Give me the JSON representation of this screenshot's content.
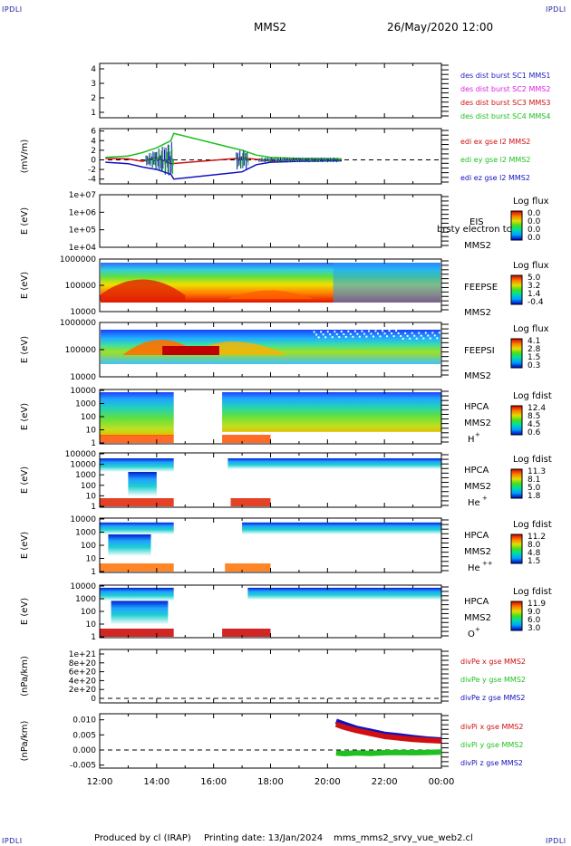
{
  "header": {
    "corner_tl": "IPDLI",
    "corner_tr": "IPDLI",
    "corner_bl": "IPDLI",
    "corner_br": "IPDLI",
    "spacecraft": "MMS2",
    "date_time": "26/May/2020 12:00"
  },
  "footer": {
    "produced_by": "Produced by cl (IRAP)",
    "printing_date": "Printing date: 13/Jan/2024",
    "file_name": "mms_mms2_srvy_vue_web2.cl"
  },
  "colors": {
    "sc1": "#2020c0",
    "sc2": "#e020e0",
    "sc3": "#d01010",
    "sc4": "#20c020",
    "x_comp": "#d01010",
    "y_comp": "#20c020",
    "z_comp": "#1010c0"
  },
  "chart_data": [
    {
      "type": "line",
      "panel": "spacecraft-legend",
      "ylim": [
        0.5,
        4.5
      ],
      "yticks": [
        "1",
        "2",
        "3",
        "4"
      ],
      "legend": [
        {
          "name": "des dist burst SC1 MMS1",
          "color": "#2020c0"
        },
        {
          "name": "des dist burst SC2 MMS2",
          "color": "#e020e0"
        },
        {
          "name": "des dist burst SC3 MMS3",
          "color": "#d01010"
        },
        {
          "name": "des dist burst SC4 MMS4",
          "color": "#20c020"
        }
      ]
    },
    {
      "type": "line",
      "panel": "edi-electric-field",
      "ylabel": "(mV/m)",
      "ylim": [
        -5,
        6.5
      ],
      "yticks": [
        "-4",
        "-2",
        "0",
        "2",
        "4",
        "6"
      ],
      "reference_line": 0,
      "series": [
        {
          "name": "edi ex gse l2 MMS2",
          "color": "#d01010",
          "x": [
            12.2,
            13.0,
            13.5,
            14.0,
            14.5,
            17.0,
            17.5,
            18.0,
            19.0,
            20.5
          ],
          "values": [
            0.3,
            0.2,
            -0.3,
            0.5,
            -0.8,
            0.4,
            0.1,
            -0.2,
            0.1,
            0.0
          ]
        },
        {
          "name": "edi ey gse l2 MMS2",
          "color": "#20c020",
          "x": [
            12.2,
            13.0,
            13.5,
            14.0,
            14.5,
            14.6,
            17.0,
            17.5,
            18.0,
            19.0,
            20.5
          ],
          "values": [
            0.5,
            0.8,
            1.5,
            2.5,
            4.0,
            5.5,
            2.0,
            1.0,
            0.5,
            0.3,
            0.2
          ]
        },
        {
          "name": "edi ez gse l2 MMS2",
          "color": "#1010c0",
          "x": [
            12.2,
            13.0,
            13.5,
            14.0,
            14.5,
            14.6,
            17.0,
            17.5,
            18.0,
            19.0,
            20.5
          ],
          "values": [
            -0.5,
            -0.8,
            -1.5,
            -2.0,
            -3.0,
            -4.0,
            -2.5,
            -1.0,
            -0.5,
            -0.3,
            -0.2
          ]
        }
      ]
    },
    {
      "type": "heatmap",
      "panel": "eis",
      "ylabel": "E (eV)",
      "yscale": "log",
      "yticks": [
        "1e+04",
        "1e+05",
        "1e+06",
        "1e+07"
      ],
      "instrument": "EIS",
      "sublabel": "MMS2",
      "legend_overlap_text": "brsty electron tc",
      "colorbar_title": "Log flux",
      "colorbar_ticks": [
        "0.0",
        "0.0",
        "0.0",
        "0.0"
      ]
    },
    {
      "type": "heatmap",
      "panel": "feepse",
      "ylabel": "E (eV)",
      "yscale": "log",
      "yticks": [
        "10000",
        "100000",
        "1000000"
      ],
      "instrument": "FEEPSE",
      "sublabel": "MMS2",
      "colorbar_title": "Log flux",
      "colorbar_ticks": [
        "5.0",
        "3.2",
        "1.4",
        "-0.4"
      ]
    },
    {
      "type": "heatmap",
      "panel": "feepsi",
      "ylabel": "E (eV)",
      "yscale": "log",
      "yticks": [
        "10000",
        "100000",
        "1000000"
      ],
      "instrument": "FEEPSI",
      "sublabel": "MMS2",
      "colorbar_title": "Log flux",
      "colorbar_ticks": [
        "4.1",
        "2.8",
        "1.5",
        "0.3"
      ]
    },
    {
      "type": "heatmap",
      "panel": "hpca-h",
      "ylabel": "E (eV)",
      "yscale": "log",
      "yticks": [
        "1",
        "10",
        "100",
        "1000",
        "10000"
      ],
      "instrument": "HPCA",
      "sublabel": "MMS2",
      "species": "H",
      "species_charge": "+",
      "colorbar_title": "Log fdist",
      "colorbar_ticks": [
        "12.4",
        "8.5",
        "4.5",
        "0.6"
      ]
    },
    {
      "type": "heatmap",
      "panel": "hpca-he",
      "ylabel": "E (eV)",
      "yscale": "log",
      "yticks": [
        "1",
        "10",
        "100",
        "1000",
        "10000",
        "100000"
      ],
      "instrument": "HPCA",
      "sublabel": "MMS2",
      "species": "He",
      "species_charge": "+",
      "colorbar_title": "Log fdist",
      "colorbar_ticks": [
        "11.3",
        "8.1",
        "5.0",
        "1.8"
      ]
    },
    {
      "type": "heatmap",
      "panel": "hpca-he2",
      "ylabel": "E (eV)",
      "yscale": "log",
      "yticks": [
        "1",
        "10",
        "100",
        "1000",
        "10000"
      ],
      "instrument": "HPCA",
      "sublabel": "MMS2",
      "species": "He",
      "species_charge": "++",
      "colorbar_title": "Log fdist",
      "colorbar_ticks": [
        "11.2",
        "8.0",
        "4.8",
        "1.5"
      ]
    },
    {
      "type": "heatmap",
      "panel": "hpca-o",
      "ylabel": "E (eV)",
      "yscale": "log",
      "yticks": [
        "1",
        "10",
        "100",
        "1000",
        "10000"
      ],
      "instrument": "HPCA",
      "sublabel": "MMS2",
      "species": "O",
      "species_charge": "+",
      "colorbar_title": "Log fdist",
      "colorbar_ticks": [
        "11.9",
        "9.0",
        "6.0",
        "3.0"
      ]
    },
    {
      "type": "line",
      "panel": "divpe",
      "ylabel": "(nPa/km)",
      "yticks": [
        "0",
        "2e+20",
        "4e+20",
        "6e+20",
        "8e+20",
        "1e+21"
      ],
      "reference_line": 0,
      "legend": [
        {
          "name": "divPe x gse MMS2",
          "color": "#d01010"
        },
        {
          "name": "divPe y gse MMS2",
          "color": "#20c020"
        },
        {
          "name": "divPe z gse MMS2",
          "color": "#1010c0"
        }
      ]
    },
    {
      "type": "line",
      "panel": "divpi",
      "ylabel": "(nPa/km)",
      "ylim": [
        -0.006,
        0.012
      ],
      "yticks": [
        "-0.005",
        "0.000",
        "0.005",
        "0.010"
      ],
      "reference_line": 0,
      "series": [
        {
          "name": "divPi x gse MMS2",
          "color": "#d01010",
          "x": [
            20.3,
            20.6,
            21.0,
            21.5,
            22.0,
            22.5,
            23.0,
            23.5,
            24.0
          ],
          "values": [
            0.0085,
            0.0075,
            0.0065,
            0.0055,
            0.0045,
            0.004,
            0.0035,
            0.0032,
            0.003
          ]
        },
        {
          "name": "divPi y gse MMS2",
          "color": "#20c020",
          "x": [
            20.3,
            20.6,
            21.0,
            21.5,
            22.0,
            22.5,
            23.0,
            23.5,
            24.0
          ],
          "values": [
            -0.001,
            -0.0012,
            -0.001,
            -0.0011,
            -0.0009,
            -0.0008,
            -0.0009,
            -0.0008,
            -0.0007
          ]
        },
        {
          "name": "divPi z gse MMS2",
          "color": "#1010c0",
          "x": [
            20.3,
            20.6,
            21.0,
            21.5,
            22.0,
            22.5,
            23.0,
            23.5,
            24.0
          ],
          "values": [
            0.0095,
            0.0085,
            0.0072,
            0.0062,
            0.0052,
            0.0047,
            0.0041,
            0.0036,
            0.0033
          ]
        }
      ]
    }
  ],
  "time_axis": {
    "range_hours": [
      12,
      24
    ],
    "tick_hours": [
      12,
      14,
      16,
      18,
      20,
      22,
      24
    ],
    "tick_labels": [
      "12:00",
      "14:00",
      "16:00",
      "18:00",
      "20:00",
      "22:00",
      "00:00"
    ]
  }
}
